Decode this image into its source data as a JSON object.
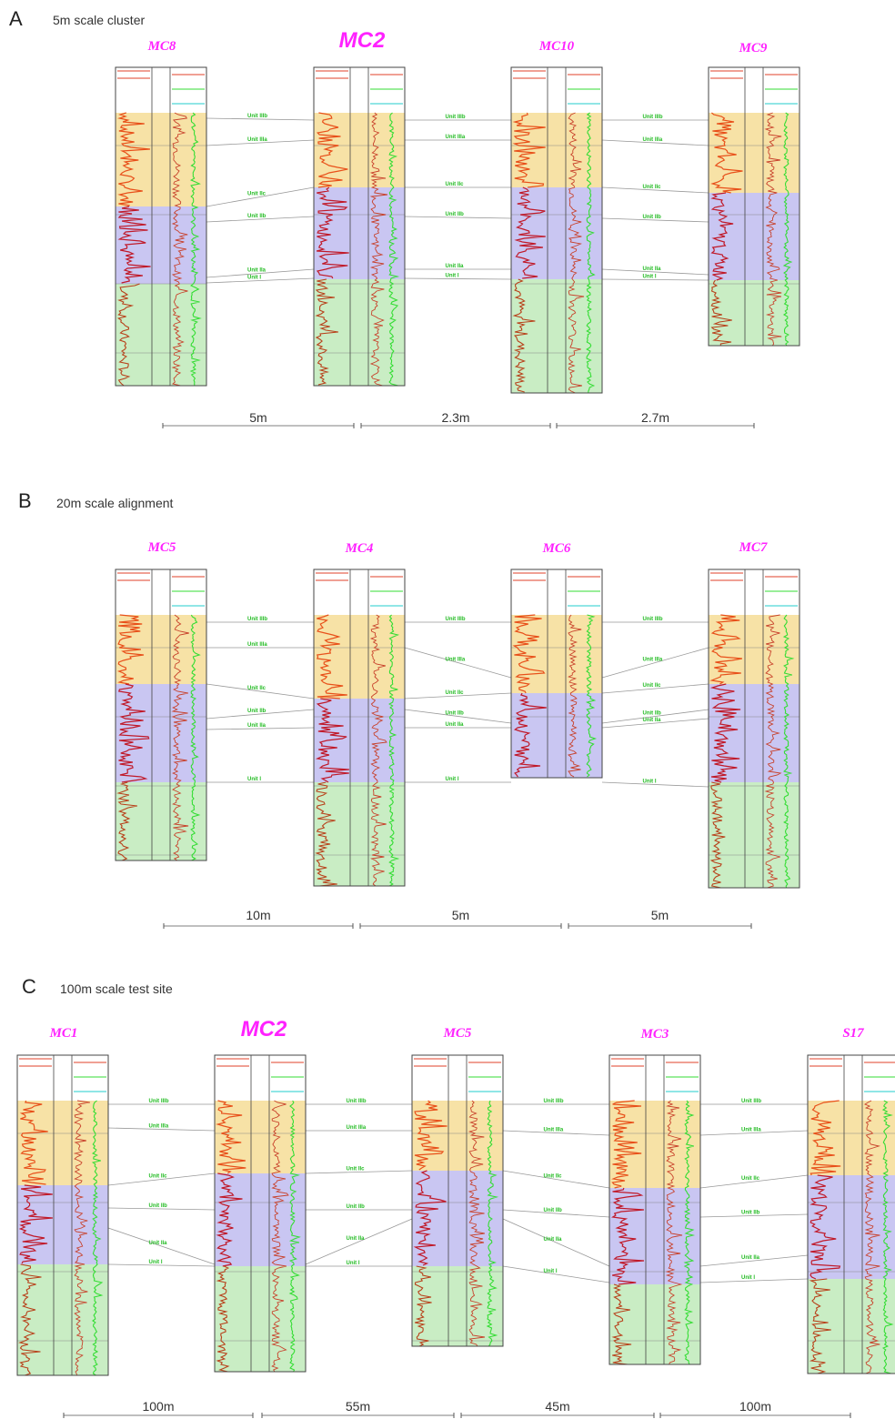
{
  "panels": [
    {
      "letter": "A",
      "title": "5m scale cluster",
      "wells": [
        {
          "name": "MC8",
          "big": false
        },
        {
          "name": "MC2",
          "big": true
        },
        {
          "name": "MC10",
          "big": false
        },
        {
          "name": "MC9",
          "big": false
        }
      ],
      "distances": [
        "5m",
        "2.3m",
        "2.7m"
      ],
      "units": [
        "Unit IIIb",
        "Unit IIIa",
        "Unit IIc",
        "Unit IIb",
        "Unit IIa",
        "Unit I"
      ]
    },
    {
      "letter": "B",
      "title": "20m scale alignment",
      "wells": [
        {
          "name": "MC5",
          "big": false
        },
        {
          "name": "MC4",
          "big": false
        },
        {
          "name": "MC6",
          "big": false
        },
        {
          "name": "MC7",
          "big": false
        }
      ],
      "distances": [
        "10m",
        "5m",
        "5m"
      ],
      "units": [
        "Unit IIIb",
        "Unit IIIa",
        "Unit IIc",
        "Unit IIb",
        "Unit IIa",
        "Unit I"
      ]
    },
    {
      "letter": "C",
      "title": "100m scale test site",
      "wells": [
        {
          "name": "MC1",
          "big": false
        },
        {
          "name": "MC2",
          "big": true
        },
        {
          "name": "MC5",
          "big": false
        },
        {
          "name": "MC3",
          "big": false
        },
        {
          "name": "S17",
          "big": false
        }
      ],
      "distances": [
        "100m",
        "55m",
        "45m",
        "100m"
      ],
      "units": [
        "Unit IIIb",
        "Unit IIIa",
        "Unit IIc",
        "Unit IIb",
        "Unit IIa",
        "Unit I"
      ]
    }
  ],
  "colors": {
    "unit_iii": "#f7e2a6",
    "unit_ii": "#c9c6f2",
    "unit_i": "#c9edc4",
    "well_label": "#ff22ff",
    "unit_text": "#22bb22",
    "log_red": "#e8501a",
    "log_darkred": "#c01a2a",
    "log_green": "#33dd33",
    "log_cyan": "#22cccc"
  }
}
